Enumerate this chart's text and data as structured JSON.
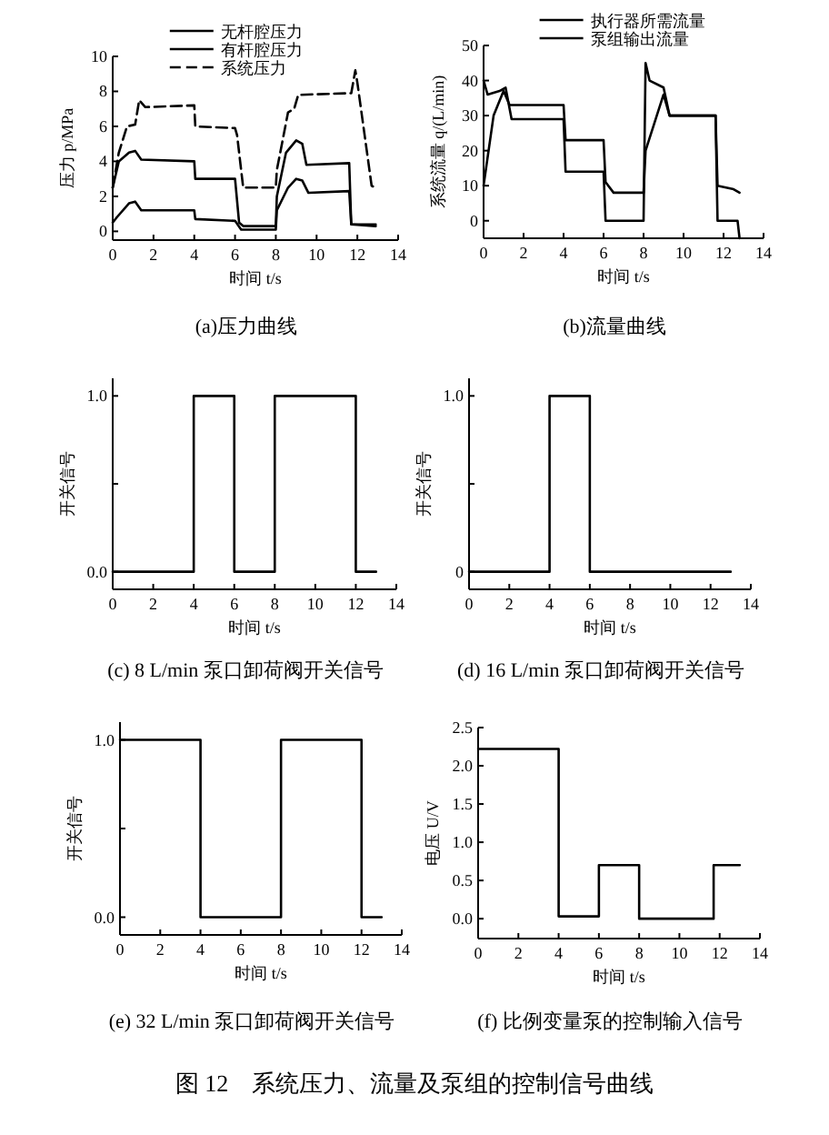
{
  "chart_data": [
    {
      "type": "line",
      "title": "(a)压力曲线",
      "xlabel": "时间 t/s",
      "ylabel": "压力 p/MPa",
      "xlim": [
        0,
        14
      ],
      "ylim": [
        -0.5,
        10
      ],
      "xticks": [
        0,
        2,
        4,
        6,
        8,
        10,
        12,
        14
      ],
      "yticks": [
        0,
        2,
        4,
        6,
        8,
        10
      ],
      "legend": "top",
      "series": [
        {
          "name": "无杆腔压力",
          "color": "#000000",
          "x": [
            0,
            0.3,
            0.8,
            1.1,
            1.4,
            4.0,
            4.05,
            6.0,
            6.2,
            6.4,
            8.0,
            8.05,
            8.5,
            9.0,
            9.3,
            9.5,
            11.6,
            11.7,
            12.9
          ],
          "values": [
            2.5,
            4.0,
            4.5,
            4.6,
            4.1,
            4.0,
            3.0,
            3.0,
            0.5,
            0.3,
            0.3,
            2.0,
            4.5,
            5.2,
            5.0,
            3.8,
            3.9,
            0.4,
            0.4
          ]
        },
        {
          "name": "有杆腔压力",
          "color": "#000000",
          "x": [
            0,
            0.2,
            0.8,
            1.1,
            1.4,
            4.0,
            4.05,
            6.0,
            6.3,
            8.0,
            8.05,
            8.6,
            9.0,
            9.3,
            9.6,
            11.6,
            11.7,
            12.9
          ],
          "values": [
            0.5,
            0.8,
            1.6,
            1.7,
            1.2,
            1.2,
            0.7,
            0.6,
            0.1,
            0.1,
            1.2,
            2.5,
            3.0,
            2.9,
            2.2,
            2.3,
            0.4,
            0.3
          ]
        },
        {
          "name": "系统压力",
          "color": "#000000",
          "line_style": "dashed",
          "x": [
            0,
            0.3,
            0.7,
            1.1,
            1.3,
            1.6,
            4.0,
            4.05,
            6.0,
            6.1,
            6.4,
            8.0,
            8.05,
            8.6,
            8.9,
            9.1,
            11.7,
            11.9,
            12.0,
            12.7,
            12.9
          ],
          "values": [
            2.5,
            4.5,
            6.0,
            6.1,
            7.5,
            7.1,
            7.2,
            6.0,
            5.9,
            5.5,
            2.5,
            2.5,
            3.5,
            6.8,
            7.0,
            7.8,
            7.9,
            9.2,
            8.5,
            2.6,
            2.5
          ]
        }
      ]
    },
    {
      "type": "line",
      "title": "(b)流量曲线",
      "xlabel": "时间 t/s",
      "ylabel": "系统流量 q/(L/min)",
      "xlim": [
        0,
        14
      ],
      "ylim": [
        -5,
        50
      ],
      "xticks": [
        0,
        2,
        4,
        6,
        8,
        10,
        12,
        14
      ],
      "yticks": [
        0,
        10,
        20,
        30,
        40,
        50
      ],
      "legend": "top",
      "series": [
        {
          "name": "执行器所需流量",
          "color": "#000000",
          "x": [
            0,
            0.2,
            0.8,
            1.1,
            1.4,
            4.0,
            4.1,
            6.0,
            6.1,
            8.0,
            8.1,
            8.3,
            9.0,
            9.3,
            11.6,
            11.7,
            12.7,
            12.8
          ],
          "values": [
            40,
            36,
            37,
            38,
            29,
            29,
            14,
            14,
            0,
            0,
            45,
            40,
            38,
            30,
            30,
            0,
            0,
            -5
          ]
        },
        {
          "name": "泵组输出流量",
          "color": "#000000",
          "x": [
            0,
            0.5,
            1.0,
            1.3,
            4.0,
            4.1,
            6.0,
            6.1,
            6.5,
            8.0,
            8.1,
            9.0,
            9.3,
            11.6,
            11.7,
            12.5,
            12.8
          ],
          "values": [
            10,
            30,
            37,
            33,
            33,
            23,
            23,
            11,
            8,
            8,
            20,
            36,
            30,
            30,
            10,
            9,
            8
          ]
        }
      ]
    },
    {
      "type": "step",
      "title": "(c) 8 L/min 泵口卸荷阀开关信号",
      "xlabel": "时间 t/s",
      "ylabel": "开关信号",
      "xlim": [
        0,
        14
      ],
      "ylim": [
        -0.1,
        1.1
      ],
      "xticks": [
        0,
        2,
        4,
        6,
        8,
        10,
        12,
        14
      ],
      "yticks": [
        {
          "value": 0,
          "label": "0.0"
        },
        {
          "value": 0.5,
          "label": null
        },
        {
          "value": 1,
          "label": "1.0"
        }
      ],
      "series": [
        {
          "color": "#000000",
          "x": [
            0,
            4,
            6,
            8,
            12,
            13
          ],
          "values": [
            0,
            1,
            0,
            1,
            0,
            0
          ]
        }
      ]
    },
    {
      "type": "step",
      "title": "(d) 16 L/min 泵口卸荷阀开关信号",
      "xlabel": "时间 t/s",
      "ylabel": "开关信号",
      "xlim": [
        0,
        14
      ],
      "ylim": [
        -0.1,
        1.1
      ],
      "xticks": [
        0,
        2,
        4,
        6,
        8,
        10,
        12,
        14
      ],
      "yticks": [
        {
          "value": 0,
          "label": "0"
        },
        {
          "value": 0.5,
          "label": null
        },
        {
          "value": 1,
          "label": "1.0"
        }
      ],
      "series": [
        {
          "color": "#000000",
          "x": [
            0,
            4,
            6,
            13
          ],
          "values": [
            0,
            1,
            0,
            0
          ]
        }
      ]
    },
    {
      "type": "step",
      "title": "(e) 32 L/min 泵口卸荷阀开关信号",
      "xlabel": "时间 t/s",
      "ylabel": "开关信号",
      "xlim": [
        0,
        14
      ],
      "ylim": [
        -0.1,
        1.1
      ],
      "xticks": [
        0,
        2,
        4,
        6,
        8,
        10,
        12,
        14
      ],
      "yticks": [
        {
          "value": 0,
          "label": "0.0"
        },
        {
          "value": 0.5,
          "label": null
        },
        {
          "value": 1,
          "label": "1.0"
        }
      ],
      "series": [
        {
          "color": "#000000",
          "x": [
            0,
            4,
            8,
            12,
            13
          ],
          "values": [
            1,
            0,
            1,
            0,
            0
          ]
        }
      ]
    },
    {
      "type": "step",
      "title": "(f) 比例变量泵的控制输入信号",
      "xlabel": "时间 t/s",
      "ylabel": "电压 U/V",
      "xlim": [
        0,
        14
      ],
      "ylim": [
        -0.26,
        2.5
      ],
      "xticks": [
        0,
        2,
        4,
        6,
        8,
        10,
        12,
        14
      ],
      "yticks": [
        {
          "value": 0,
          "label": "0.0"
        },
        {
          "value": 0.5,
          "label": "0.5"
        },
        {
          "value": 1,
          "label": "1.0"
        },
        {
          "value": 1.5,
          "label": "1.5"
        },
        {
          "value": 2,
          "label": "2.0"
        },
        {
          "value": 2.5,
          "label": "2.5"
        }
      ],
      "annotations": [
        "图 12　系统压力、流量及泵组的控制信号曲线"
      ],
      "series": [
        {
          "color": "#000000",
          "x": [
            0,
            4,
            6,
            8,
            11.7,
            13
          ],
          "values": [
            2.22,
            0.03,
            0.7,
            0,
            0.7,
            0.7
          ]
        }
      ]
    }
  ]
}
